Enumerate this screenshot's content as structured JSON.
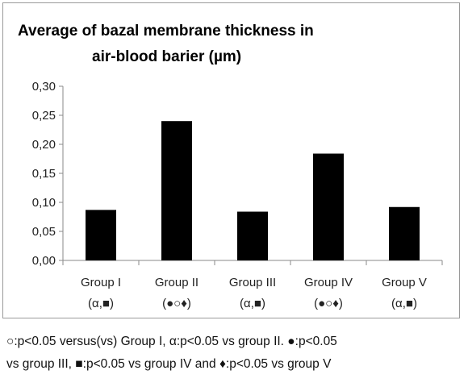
{
  "chart_data": {
    "type": "bar",
    "title_lines": [
      "Average of bazal membrane thickness in",
      "air-blood barier (µm)"
    ],
    "categories": [
      "Group I",
      "Group II",
      "Group III",
      "Group IV",
      "Group V"
    ],
    "category_sublabels": [
      "(α,■)",
      "(●○♦)",
      "(α,■)",
      "(●○♦)",
      "(α,■)"
    ],
    "values": [
      0.087,
      0.24,
      0.084,
      0.184,
      0.092
    ],
    "ylim": [
      0,
      0.3
    ],
    "yticks": [
      "0,00",
      "0,05",
      "0,10",
      "0,15",
      "0,20",
      "0,25",
      "0,30"
    ],
    "xlabel": "",
    "ylabel": "",
    "grid": false,
    "bar_color": "#000000"
  },
  "footnote": {
    "line1": "○:p<0.05 versus(vs) Group I, α:p<0.05 vs group II. ●:p<0.05",
    "line2": "vs group III, ■:p<0.05 vs group IV and ♦:p<0.05 vs group V"
  }
}
